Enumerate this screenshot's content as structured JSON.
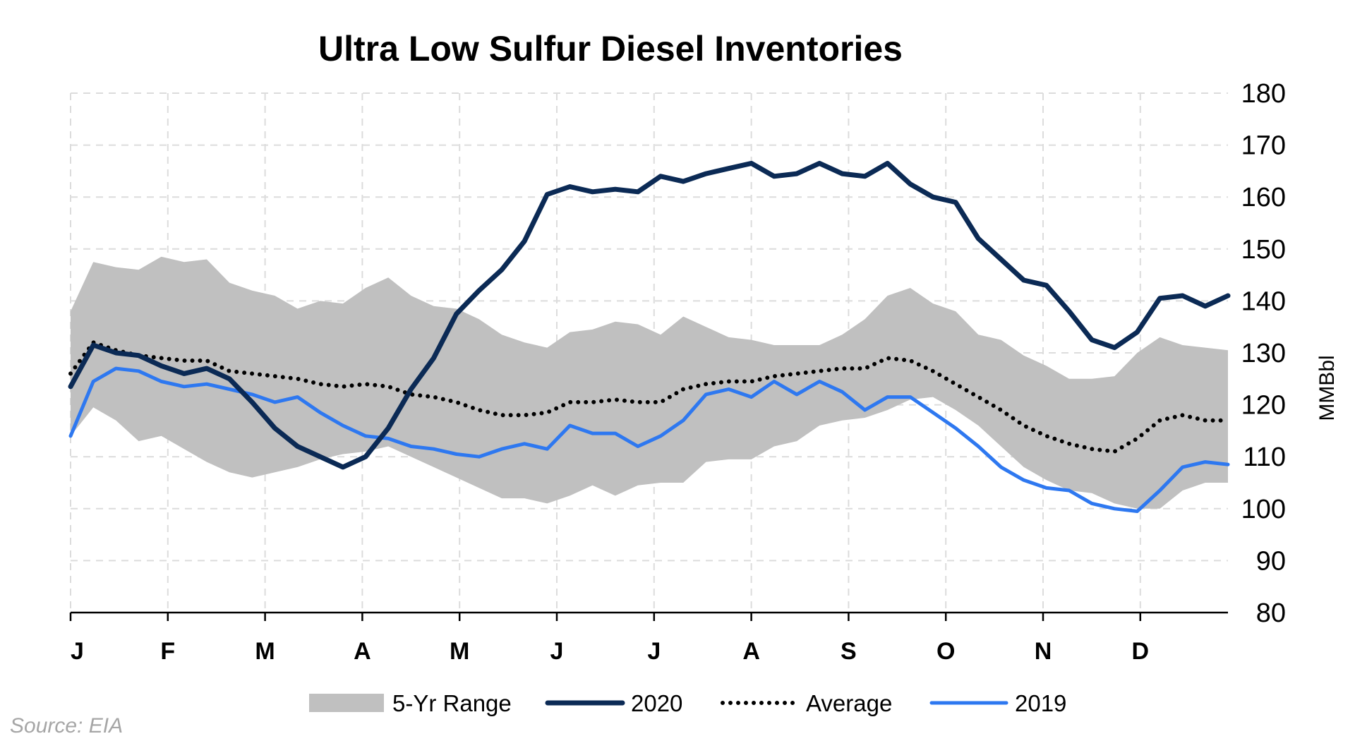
{
  "chart_data": {
    "type": "line",
    "title": "Ultra Low Sulfur Diesel Inventories",
    "ylabel": "MMBbl",
    "xlabel": "",
    "ylim": [
      80,
      180
    ],
    "yticks": [
      80,
      90,
      100,
      110,
      120,
      130,
      140,
      150,
      160,
      170,
      180
    ],
    "month_labels": [
      "J",
      "F",
      "M",
      "A",
      "M",
      "J",
      "J",
      "A",
      "S",
      "O",
      "N",
      "D"
    ],
    "y_axis_side": "right",
    "grid": "dashed",
    "legend_position": "bottom",
    "source": "Source: EIA",
    "range": {
      "name": "5-Yr Range",
      "color": "#c0c0c0",
      "upper": [
        138,
        147.5,
        146.5,
        146,
        148.5,
        147.5,
        148,
        143.5,
        142,
        141,
        138.5,
        140,
        139.5,
        142.5,
        144.5,
        141,
        139,
        138.5,
        136.5,
        133.5,
        132,
        131,
        134,
        134.5,
        136,
        135.5,
        133.5,
        137,
        135,
        133,
        132.5,
        131.5,
        131.5,
        131.5,
        133.5,
        136.5,
        141,
        142.5,
        139.5,
        138,
        133.5,
        132.5,
        129.5,
        127.5,
        125,
        125,
        125.5,
        130,
        133,
        131.5,
        131,
        130.5
      ],
      "lower": [
        114,
        119.5,
        117,
        113,
        114,
        111.5,
        109,
        107,
        106,
        107,
        108,
        109.5,
        110.5,
        111,
        112,
        110,
        108,
        106,
        104,
        102,
        102,
        101,
        102.5,
        104.5,
        102.5,
        104.5,
        105,
        105,
        109,
        109.5,
        109.5,
        112,
        113,
        116,
        117,
        117.5,
        119,
        121,
        121.5,
        119,
        116,
        112,
        108,
        105.5,
        103.5,
        103,
        101,
        100,
        100,
        103.5,
        105,
        105
      ]
    },
    "series": [
      {
        "name": "2020",
        "color": "#0b2a55",
        "style": "solid",
        "width": 7,
        "values": [
          123.5,
          131.5,
          130,
          129.5,
          127.5,
          126,
          127,
          125,
          120.5,
          115.5,
          112,
          110,
          108,
          110,
          115.5,
          123,
          129,
          137.5,
          142,
          146,
          151.5,
          160.5,
          162,
          161,
          161.5,
          161,
          164,
          163,
          164.5,
          165.5,
          166.5,
          164,
          164.5,
          166.5,
          164.5,
          164,
          166.5,
          162.5,
          160,
          159,
          152,
          148,
          144,
          143,
          138,
          132.5,
          131,
          134,
          140.5,
          141,
          139,
          141
        ]
      },
      {
        "name": "Average",
        "color": "#000000",
        "style": "dotted",
        "width": 5,
        "values": [
          126,
          132,
          130.5,
          129.5,
          129,
          128.5,
          128.5,
          126.5,
          126,
          125.5,
          125,
          124,
          123.5,
          124,
          123.5,
          122,
          121.5,
          120.5,
          119,
          118,
          118,
          118.5,
          120.5,
          120.5,
          121,
          120.5,
          120.5,
          123,
          124,
          124.5,
          124.5,
          125.5,
          126,
          126.5,
          127,
          127,
          129,
          128.5,
          126.5,
          124,
          121.5,
          119,
          116,
          114,
          112.5,
          111.5,
          111,
          113.5,
          117,
          118,
          117,
          117
        ]
      },
      {
        "name": "2019",
        "color": "#2e78f0",
        "style": "solid",
        "width": 5,
        "values": [
          114,
          124.5,
          127,
          126.5,
          124.5,
          123.5,
          124,
          123,
          122,
          120.5,
          121.5,
          118.5,
          116,
          114,
          113.5,
          112,
          111.5,
          110.5,
          110,
          111.5,
          112.5,
          111.5,
          116,
          114.5,
          114.5,
          112,
          114,
          117,
          122,
          123,
          121.5,
          124.5,
          122,
          124.5,
          122.5,
          119,
          121.5,
          121.5,
          118.5,
          115.5,
          112,
          108,
          105.5,
          104,
          103.5,
          101,
          100,
          99.5,
          103.5,
          108,
          109,
          108.5
        ]
      }
    ],
    "legend": [
      "5-Yr Range",
      "2020",
      "Average",
      "2019"
    ]
  }
}
